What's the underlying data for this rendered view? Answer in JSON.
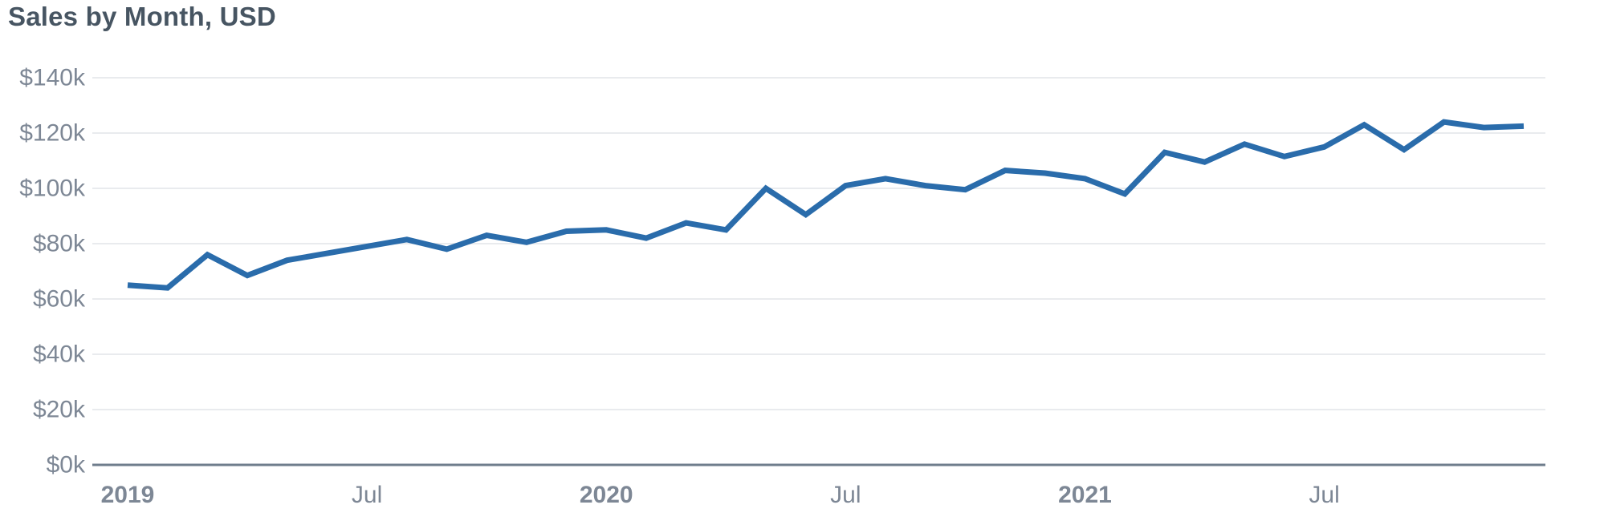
{
  "page": {
    "background_color": "#ffffff"
  },
  "chart_data": {
    "type": "line",
    "title": "Sales by Month, USD",
    "series_name": "Sales",
    "x_unit": "month",
    "months": [
      "Jan 2019",
      "Feb 2019",
      "Mar 2019",
      "Apr 2019",
      "May 2019",
      "Jun 2019",
      "Jul 2019",
      "Aug 2019",
      "Sep 2019",
      "Oct 2019",
      "Nov 2019",
      "Dec 2019",
      "Jan 2020",
      "Feb 2020",
      "Mar 2020",
      "Apr 2020",
      "May 2020",
      "Jun 2020",
      "Jul 2020",
      "Aug 2020",
      "Sep 2020",
      "Oct 2020",
      "Nov 2020",
      "Dec 2020",
      "Jan 2021",
      "Feb 2021",
      "Mar 2021",
      "Apr 2021",
      "May 2021",
      "Jun 2021",
      "Jul 2021",
      "Aug 2021",
      "Sep 2021",
      "Oct 2021",
      "Nov 2021",
      "Dec 2021"
    ],
    "values": [
      65000,
      64000,
      76000,
      68500,
      74000,
      76500,
      79000,
      81500,
      78000,
      83000,
      80500,
      84500,
      85000,
      82000,
      87500,
      85000,
      100000,
      90500,
      101000,
      103500,
      101000,
      99500,
      106500,
      105500,
      103500,
      98000,
      113000,
      109500,
      116000,
      111500,
      115000,
      123000,
      114000,
      124000,
      122000,
      122500
    ],
    "ylim": [
      0,
      140000
    ],
    "y_ticks": [
      {
        "label": "$0k",
        "value": 0
      },
      {
        "label": "$20k",
        "value": 20000
      },
      {
        "label": "$40k",
        "value": 40000
      },
      {
        "label": "$60k",
        "value": 60000
      },
      {
        "label": "$80k",
        "value": 80000
      },
      {
        "label": "$100k",
        "value": 100000
      },
      {
        "label": "$120k",
        "value": 120000
      },
      {
        "label": "$140k",
        "value": 140000
      }
    ],
    "x_ticks": [
      {
        "label": "2019",
        "month_index": 0,
        "bold": true
      },
      {
        "label": "Jul",
        "month_index": 6,
        "bold": false
      },
      {
        "label": "2020",
        "month_index": 12,
        "bold": true
      },
      {
        "label": "Jul",
        "month_index": 18,
        "bold": false
      },
      {
        "label": "2021",
        "month_index": 24,
        "bold": true
      },
      {
        "label": "Jul",
        "month_index": 30,
        "bold": false
      }
    ],
    "grid": true,
    "legend": "none",
    "colors": {
      "line": "#2a6cab",
      "title_text": "#475562",
      "axis_label_text": "#7d8795",
      "gridline": "#e9ebee",
      "baseline_axis": "#6f7d8c"
    }
  }
}
